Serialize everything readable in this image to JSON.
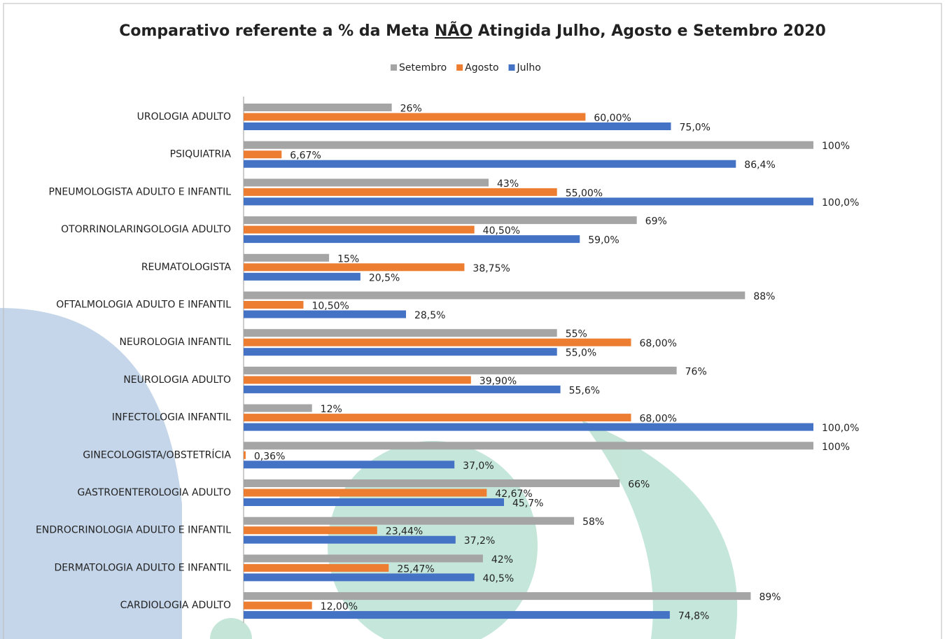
{
  "chart_data": {
    "type": "bar",
    "orientation": "horizontal",
    "title": [
      "Comparativo referente a % da Meta ",
      "NÃO",
      " Atingida Julho, Agosto e Setembro 2020"
    ],
    "categories": [
      "UROLOGIA ADULTO",
      "PSIQUIATRIA",
      "PNEUMOLOGISTA ADULTO E INFANTIL",
      "OTORRINOLARINGOLOGIA ADULTO",
      "REUMATOLOGISTA",
      "OFTALMOLOGIA ADULTO E INFANTIL",
      "NEUROLOGIA INFANTIL",
      "NEUROLOGIA ADULTO",
      "INFECTOLOGIA INFANTIL",
      "GINECOLOGISTA/OBSTETRÍCIA",
      "GASTROENTEROLOGIA ADULTO",
      "ENDROCRINOLOGIA ADULTO E INFANTIL",
      "DERMATOLOGIA ADULTO E INFANTIL",
      "CARDIOLOGIA ADULTO"
    ],
    "series": [
      {
        "name": "Setembro",
        "color": "#a5a5a5",
        "values": [
          26,
          100,
          43,
          69,
          15,
          88,
          55,
          76,
          12,
          100,
          66,
          58,
          42,
          89
        ],
        "value_labels": [
          "26%",
          "100%",
          "43%",
          "69%",
          "15%",
          "88%",
          "55%",
          "76%",
          "12%",
          "100%",
          "66%",
          "58%",
          "42%",
          "89%"
        ]
      },
      {
        "name": "Agosto",
        "color": "#ed7d31",
        "values": [
          60,
          6.67,
          55,
          40.5,
          38.75,
          10.5,
          68,
          39.9,
          68,
          0.36,
          42.67,
          23.44,
          25.47,
          12
        ],
        "value_labels": [
          "60,00%",
          "6,67%",
          "55,00%",
          "40,50%",
          "38,75%",
          "10,50%",
          "68,00%",
          "39,90%",
          "68,00%",
          "0,36%",
          "42,67%",
          "23,44%",
          "25,47%",
          "12,00%"
        ]
      },
      {
        "name": "Julho",
        "color": "#4472c4",
        "values": [
          75,
          86.4,
          100,
          59,
          20.5,
          28.5,
          55,
          55.6,
          100,
          37,
          45.7,
          37.2,
          40.5,
          74.8
        ],
        "value_labels": [
          "75,0%",
          "86,4%",
          "100,0%",
          "59,0%",
          "20,5%",
          "28,5%",
          "55,0%",
          "55,6%",
          "100,0%",
          "37,0%",
          "45,7%",
          "37,2%",
          "40,5%",
          "74,8%"
        ]
      }
    ],
    "xlim": [
      0,
      100
    ],
    "legend": "top"
  }
}
